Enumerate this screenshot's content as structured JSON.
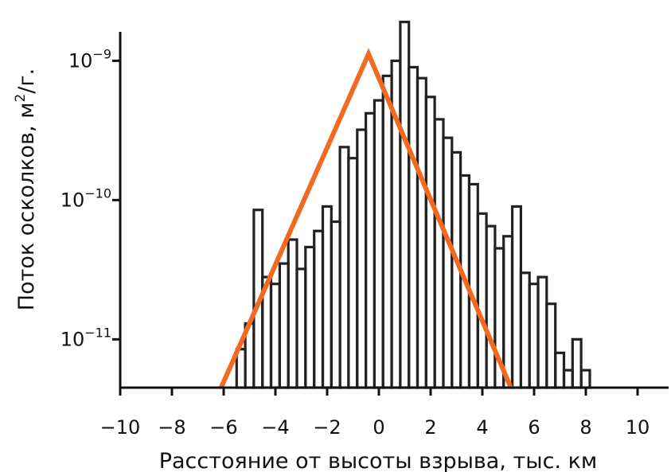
{
  "chart_data": {
    "type": "histogram",
    "xlabel": "Расстояние от высоты взрыва, тыс. км",
    "ylabel": "Поток осколков, м²/г.",
    "ylabel_parts": {
      "base": "Поток осколков, м",
      "sup": "2",
      "tail": "/г."
    },
    "xlim": [
      -10,
      11.2
    ],
    "ylim": [
      4.5e-12,
      2.1e-09
    ],
    "yscale": "log",
    "grid": false,
    "x_ticks": [
      -10,
      -8,
      -6,
      -4,
      -2,
      0,
      2,
      4,
      6,
      8,
      10
    ],
    "x_tick_labels": [
      "−10",
      "−8",
      "−6",
      "−4",
      "−2",
      "0",
      "2",
      "4",
      "6",
      "8",
      "10"
    ],
    "y_ticks": [
      {
        "value": 1e-09,
        "base": "10",
        "exp": "−9"
      },
      {
        "value": 1e-10,
        "base": "10",
        "exp": "−10"
      },
      {
        "value": 1e-11,
        "base": "10",
        "exp": "−11"
      }
    ],
    "histogram": {
      "bin_width": 0.333,
      "x_start": -5.5,
      "values": [
        8.5e-12,
        1.3e-11,
        8.5e-11,
        2.8e-11,
        2.5e-11,
        3.5e-11,
        5.2e-11,
        3.2e-11,
        4.6e-11,
        6e-11,
        9e-11,
        7e-11,
        2.4e-10,
        2e-10,
        3.2e-10,
        4.2e-10,
        5.2e-10,
        7.8e-10,
        1e-09,
        1.9e-09,
        9e-10,
        7.5e-10,
        5.5e-10,
        3.8e-10,
        2.8e-10,
        2.2e-10,
        1.5e-10,
        1.3e-10,
        8e-11,
        6.5e-11,
        4.5e-11,
        5.5e-11,
        9e-11,
        3e-11,
        2.5e-11,
        2.8e-11,
        1.8e-11,
        8e-12,
        6e-12,
        1e-11,
        6e-12
      ],
      "color": "#222222"
    },
    "fit_line": {
      "x": [
        -6.1,
        -0.4,
        5.1
      ],
      "y": [
        4.5e-12,
        1.12e-09,
        4.5e-12
      ],
      "color": "#f26a21"
    }
  }
}
